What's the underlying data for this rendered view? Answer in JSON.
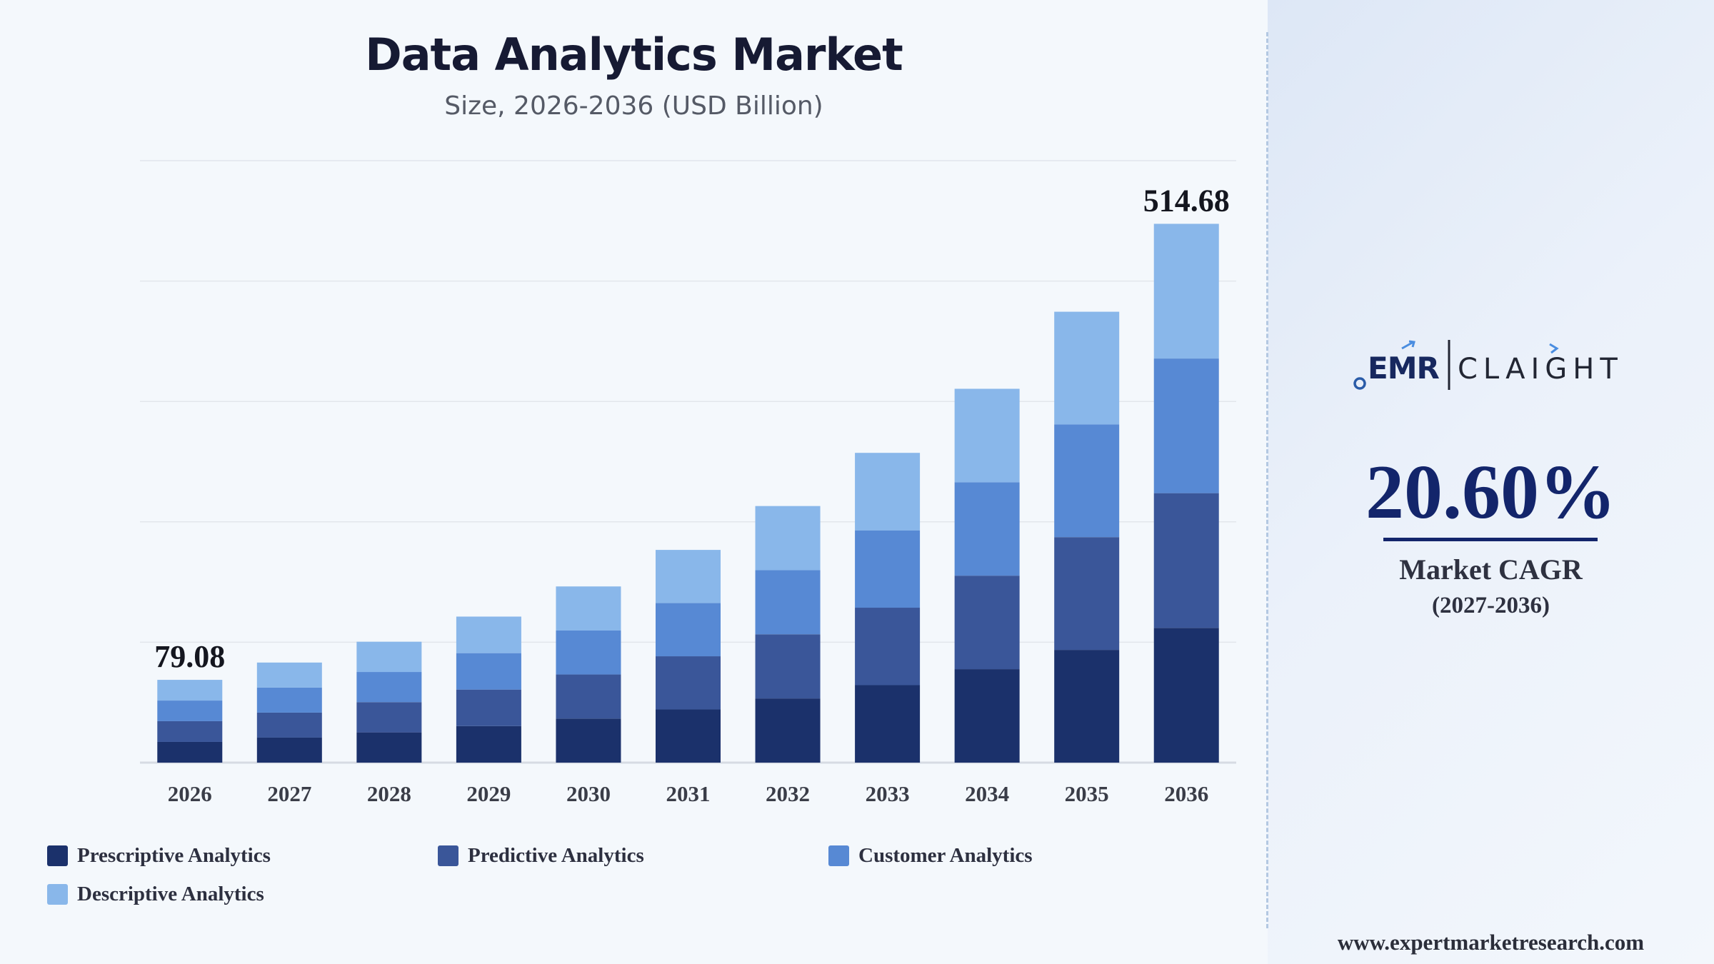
{
  "chart_data": {
    "type": "bar",
    "stacked": true,
    "title": "Data Analytics Market",
    "subtitle": "Size, 2026-2036 (USD Billion)",
    "categories": [
      "2026",
      "2027",
      "2028",
      "2029",
      "2030",
      "2031",
      "2032",
      "2033",
      "2034",
      "2035",
      "2036"
    ],
    "series": [
      {
        "name": "Prescriptive Analytics",
        "color": "#1b316b",
        "values": [
          19.8,
          23.9,
          28.9,
          34.9,
          42.1,
          50.8,
          61.3,
          74.0,
          89.3,
          107.7,
          128.7
        ]
      },
      {
        "name": "Predictive Analytics",
        "color": "#3a5699",
        "values": [
          19.8,
          23.9,
          28.9,
          34.9,
          42.1,
          50.8,
          61.3,
          74.0,
          89.3,
          107.7,
          128.7
        ]
      },
      {
        "name": "Customer Analytics",
        "color": "#5789d4",
        "values": [
          19.7,
          23.9,
          28.8,
          34.8,
          42.0,
          50.8,
          61.2,
          73.9,
          89.2,
          107.6,
          128.6
        ]
      },
      {
        "name": "Descriptive Analytics",
        "color": "#89b7ea",
        "values": [
          19.78,
          23.9,
          28.9,
          34.9,
          42.1,
          50.8,
          61.3,
          74.0,
          89.3,
          107.7,
          128.68
        ]
      }
    ],
    "data_labels": [
      {
        "category": "2026",
        "text": "79.08"
      },
      {
        "category": "2036",
        "text": "514.68"
      }
    ],
    "ylim": [
      0,
      575
    ],
    "y_gridlines": [
      0,
      115,
      230,
      345,
      460,
      575
    ],
    "grid": true,
    "legend": "bottom"
  },
  "side_panel": {
    "brand": {
      "left": "EMR",
      "right": "CLAIGHT"
    },
    "cagr_value": "20.60%",
    "cagr_label": "Market CAGR",
    "cagr_period": "(2027-2036)",
    "website": "www.expertmarketresearch.com"
  },
  "colors": {
    "title": "#161a33",
    "accent": "#13256b",
    "logo_blue": "#2a5ba8"
  }
}
